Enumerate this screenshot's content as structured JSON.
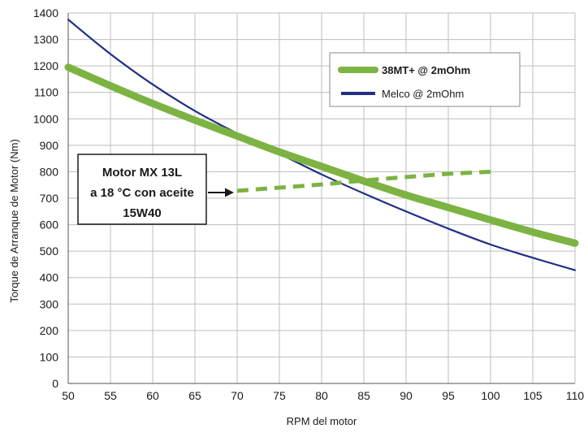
{
  "chart_data": {
    "type": "line",
    "xlabel": "RPM del motor",
    "ylabel": "Torque de Arranque de Motor (Nm)",
    "xlim": [
      50,
      110
    ],
    "ylim": [
      0,
      1400
    ],
    "x_ticks": [
      50,
      55,
      60,
      65,
      70,
      75,
      80,
      85,
      90,
      95,
      100,
      105,
      110
    ],
    "y_ticks": [
      0,
      100,
      200,
      300,
      400,
      500,
      600,
      700,
      800,
      900,
      1000,
      1100,
      1200,
      1300,
      1400
    ],
    "grid": "both",
    "legend_position": "top-right",
    "series": [
      {
        "name": "38MT+ @ 2mOhm",
        "color": "#7cb342",
        "style": "solid-thick",
        "points": [
          [
            50,
            1195
          ],
          [
            55,
            1125
          ],
          [
            60,
            1058
          ],
          [
            65,
            995
          ],
          [
            70,
            935
          ],
          [
            75,
            875
          ],
          [
            80,
            820
          ],
          [
            85,
            765
          ],
          [
            90,
            712
          ],
          [
            95,
            665
          ],
          [
            100,
            618
          ],
          [
            105,
            572
          ],
          [
            110,
            530
          ]
        ]
      },
      {
        "name": "Melco @ 2mOhm",
        "color": "#1f2f86",
        "style": "solid-thin",
        "points": [
          [
            50,
            1375
          ],
          [
            55,
            1245
          ],
          [
            60,
            1130
          ],
          [
            65,
            1030
          ],
          [
            70,
            945
          ],
          [
            75,
            868
          ],
          [
            80,
            790
          ],
          [
            85,
            718
          ],
          [
            90,
            650
          ],
          [
            95,
            585
          ],
          [
            100,
            525
          ],
          [
            105,
            475
          ],
          [
            110,
            428
          ]
        ]
      },
      {
        "color": "#7cb342",
        "style": "dashed",
        "points": [
          [
            70,
            728
          ],
          [
            75,
            740
          ],
          [
            80,
            752
          ],
          [
            85,
            767
          ],
          [
            90,
            780
          ],
          [
            95,
            792
          ],
          [
            100,
            800
          ]
        ]
      }
    ],
    "annotation": {
      "lines": [
        "Motor MX 13L",
        "a 18 °C con aceite",
        "15W40"
      ],
      "arrow_to": [
        70,
        728
      ]
    }
  }
}
